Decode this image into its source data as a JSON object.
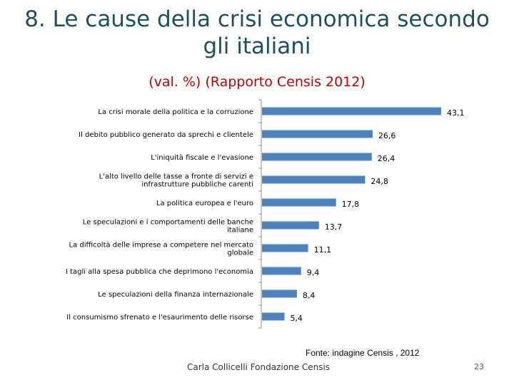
{
  "slide": {
    "title_line1": "8. Le cause della crisi economica secondo",
    "title_line2": "gli italiani",
    "subtitle": "(val. %) (Rapporto Censis 2012)",
    "source": "Fonte: indagine Censis , 2012",
    "author": "Carla Collicelli Fondazione Censis",
    "page_number": "23"
  },
  "chart_data": {
    "type": "bar",
    "orientation": "horizontal",
    "categories": [
      [
        "La crisi morale della politica e la corruzione"
      ],
      [
        "Il debito pubblico generato da sprechi e clientele"
      ],
      [
        "L'iniquità fiscale e l'evasione"
      ],
      [
        "L'alto livello delle tasse a fronte di servizi e",
        "infrastrutture pubbliche carenti"
      ],
      [
        "La politica europea e l'euro"
      ],
      [
        "Le speculazioni e i comportamenti delle banche",
        "italiane"
      ],
      [
        "La difficoltà delle imprese a competere nel mercato",
        "globale"
      ],
      [
        "I tagli alla spesa pubblica che deprimono l'economia"
      ],
      [
        "Le speculazioni della finanza internazionale"
      ],
      [
        "Il consumismo sfrenato e l'esaurimento delle risorse"
      ]
    ],
    "values": [
      43.1,
      26.6,
      26.4,
      24.8,
      17.8,
      13.7,
      11.1,
      9.4,
      8.4,
      5.4
    ],
    "value_labels": [
      "43,1",
      "26,6",
      "26,4",
      "24,8",
      "17,8",
      "13,7",
      "11,1",
      "9,4",
      "8,4",
      "5,4"
    ],
    "xlim": [
      0,
      45
    ],
    "bar_color": "#4f81bd",
    "grid": false,
    "legend": "none"
  }
}
